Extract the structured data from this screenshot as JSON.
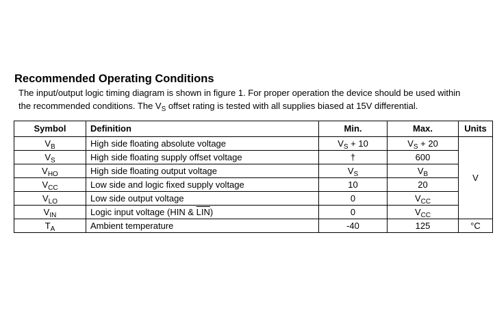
{
  "header": {
    "title": "Recommended Operating Conditions"
  },
  "intro": {
    "lines": [
      [
        {
          "text": "The input/output logic timing diagram is shown in figure 1. For proper operation the device should be used within"
        }
      ],
      [
        {
          "text": "the recommended conditions. The V"
        },
        {
          "sub": "S"
        },
        {
          "text": " offset rating is tested with all supplies biased at 15V differential."
        }
      ]
    ]
  },
  "table": {
    "columns": [
      "Symbol",
      "Definition",
      "Min.",
      "Max.",
      "Units"
    ],
    "rows": [
      [
        [
          {
            "text": "V"
          },
          {
            "sub": "B"
          }
        ],
        "High side floating absolute voltage",
        [
          {
            "text": "V"
          },
          {
            "sub": "S"
          },
          {
            "text": " + 10"
          }
        ],
        [
          {
            "text": "V"
          },
          {
            "sub": "S"
          },
          {
            "text": " + 20"
          }
        ],
        "V"
      ],
      [
        [
          {
            "text": "V"
          },
          {
            "sub": "S"
          }
        ],
        "High side floating supply offset voltage",
        "†",
        600,
        null
      ],
      [
        [
          {
            "text": "V"
          },
          {
            "sub": "HO"
          }
        ],
        "High side floating output voltage",
        [
          {
            "text": "V"
          },
          {
            "sub": "S"
          }
        ],
        [
          {
            "text": "V"
          },
          {
            "sub": "B"
          }
        ],
        null
      ],
      [
        [
          {
            "text": "V"
          },
          {
            "sub": "CC"
          }
        ],
        "Low side and logic fixed supply voltage",
        10,
        20,
        null
      ],
      [
        [
          {
            "text": "V"
          },
          {
            "sub": "LO"
          }
        ],
        "Low side output voltage",
        0,
        [
          {
            "text": "V"
          },
          {
            "sub": "CC"
          }
        ],
        null
      ],
      [
        [
          {
            "text": "V"
          },
          {
            "sub": "IN"
          }
        ],
        [
          {
            "text": "Logic input voltage (HIN & "
          },
          {
            "over": "LIN"
          },
          {
            "text": ")"
          }
        ],
        0,
        [
          {
            "text": "V"
          },
          {
            "sub": "CC"
          }
        ],
        null
      ],
      [
        [
          {
            "text": "T"
          },
          {
            "sub": "A"
          }
        ],
        "Ambient temperature",
        -40,
        125,
        "°C"
      ]
    ]
  }
}
